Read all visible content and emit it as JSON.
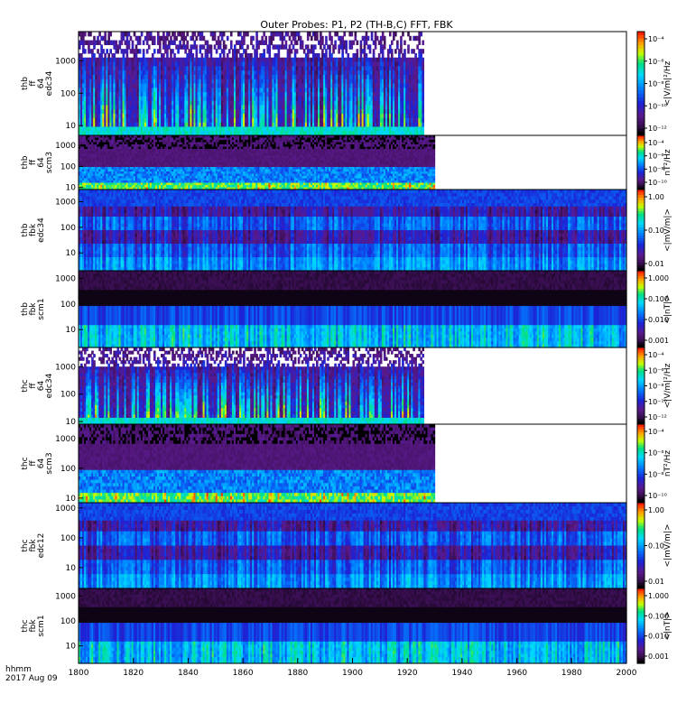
{
  "title": "Outer Probes: P1, P2 (TH-B,C) FFT, FBK",
  "footer": {
    "time_label": "hhmm",
    "date": "2017 Aug 09"
  },
  "chart_data": [
    {
      "type": "heatmap",
      "panel": "thb ff 64 edc34",
      "ylabel": [
        "thb",
        "ff",
        "64",
        "edc34"
      ],
      "yticks": [
        10,
        100,
        1000
      ],
      "ylim": [
        5,
        8000
      ],
      "yscale": "log",
      "xlim": [
        1800,
        2000
      ],
      "data_end": 1926,
      "colorbar": {
        "label": "<|V/m|²/Hz",
        "ticks": [
          "10⁻⁴",
          "10⁻⁶",
          "10⁻⁸",
          "10⁻¹⁰",
          "10⁻¹²"
        ]
      },
      "pattern": "spiky"
    },
    {
      "type": "heatmap",
      "panel": "thb ff 64 scm3",
      "ylabel": [
        "thb",
        "ff",
        "64",
        "scm3"
      ],
      "yticks": [
        10,
        100,
        1000
      ],
      "ylim": [
        8,
        3000
      ],
      "yscale": "log",
      "xlim": [
        1800,
        2000
      ],
      "data_end": 1930,
      "colorbar": {
        "label": "nT²/Hz",
        "ticks": [
          "10⁻⁴",
          "10⁻⁶",
          "10⁻⁸",
          "10⁻¹⁰"
        ]
      },
      "pattern": "scm"
    },
    {
      "type": "heatmap",
      "panel": "thb fbk edc34",
      "ylabel": [
        "thb",
        "fbk",
        "edc34"
      ],
      "yticks": [
        10,
        100,
        1000
      ],
      "ylim": [
        2,
        3000
      ],
      "yscale": "log",
      "xlim": [
        1800,
        2000
      ],
      "data_end": 2000,
      "colorbar": {
        "label": "<|mV/m|>",
        "ticks": [
          "1.00",
          "0.10",
          "0.01"
        ]
      },
      "pattern": "fbk_edc"
    },
    {
      "type": "heatmap",
      "panel": "thb fbk scm1",
      "ylabel": [
        "thb",
        "fbk",
        "scm1"
      ],
      "yticks": [
        10,
        100,
        1000
      ],
      "ylim": [
        2,
        2000
      ],
      "yscale": "log",
      "xlim": [
        1800,
        2000
      ],
      "data_end": 2000,
      "colorbar": {
        "label": "<|nT|>",
        "ticks": [
          "1.000",
          "0.100",
          "0.010",
          "0.001"
        ]
      },
      "pattern": "fbk_scm"
    },
    {
      "type": "heatmap",
      "panel": "thc ff 64 edc34",
      "ylabel": [
        "thc",
        "ff",
        "64",
        "edc34"
      ],
      "yticks": [
        10,
        100,
        1000
      ],
      "ylim": [
        8,
        5000
      ],
      "yscale": "log",
      "xlim": [
        1800,
        2000
      ],
      "data_end": 1926,
      "colorbar": {
        "label": "<|V/m|²/Hz",
        "ticks": [
          "10⁻⁴",
          "10⁻⁶",
          "10⁻⁸",
          "10⁻¹⁰",
          "10⁻¹²"
        ]
      },
      "pattern": "spiky"
    },
    {
      "type": "heatmap",
      "panel": "thc ff 64 scm3",
      "ylabel": [
        "thc",
        "ff",
        "64",
        "scm3"
      ],
      "yticks": [
        10,
        100,
        1000
      ],
      "ylim": [
        7,
        3000
      ],
      "yscale": "log",
      "xlim": [
        1800,
        2000
      ],
      "data_end": 1930,
      "colorbar": {
        "label": "nT²/Hz",
        "ticks": [
          "10⁻⁴",
          "10⁻⁶",
          "10⁻⁸",
          "10⁻¹⁰"
        ]
      },
      "pattern": "scm"
    },
    {
      "type": "heatmap",
      "panel": "thc fbk edc12",
      "ylabel": [
        "thc",
        "fbk",
        "edc12"
      ],
      "yticks": [
        10,
        100,
        1000
      ],
      "ylim": [
        2,
        1500
      ],
      "yscale": "log",
      "xlim": [
        1800,
        2000
      ],
      "data_end": 2000,
      "colorbar": {
        "label": "<|mV/m|>",
        "ticks": [
          "1.00",
          "0.10",
          "0.01"
        ]
      },
      "pattern": "fbk_edc"
    },
    {
      "type": "heatmap",
      "panel": "thc fbk scm1",
      "ylabel": [
        "thc",
        "fbk",
        "scm1"
      ],
      "yticks": [
        10,
        100,
        1000
      ],
      "ylim": [
        2,
        2000
      ],
      "yscale": "log",
      "xlim": [
        1800,
        2000
      ],
      "data_end": 2000,
      "colorbar": {
        "label": "<|nT|>",
        "ticks": [
          "1.000",
          "0.100",
          "0.010",
          "0.001"
        ]
      },
      "pattern": "fbk_scm"
    }
  ],
  "x_axis": {
    "ticks": [
      1800,
      1820,
      1840,
      1860,
      1880,
      1900,
      1920,
      1940,
      1960,
      1980,
      2000
    ],
    "labels": [
      "1800",
      "1820",
      "1840",
      "1860",
      "1880",
      "1900",
      "1920",
      "1940",
      "1960",
      "1980",
      "2000"
    ],
    "xlim": [
      1800,
      2000
    ]
  }
}
